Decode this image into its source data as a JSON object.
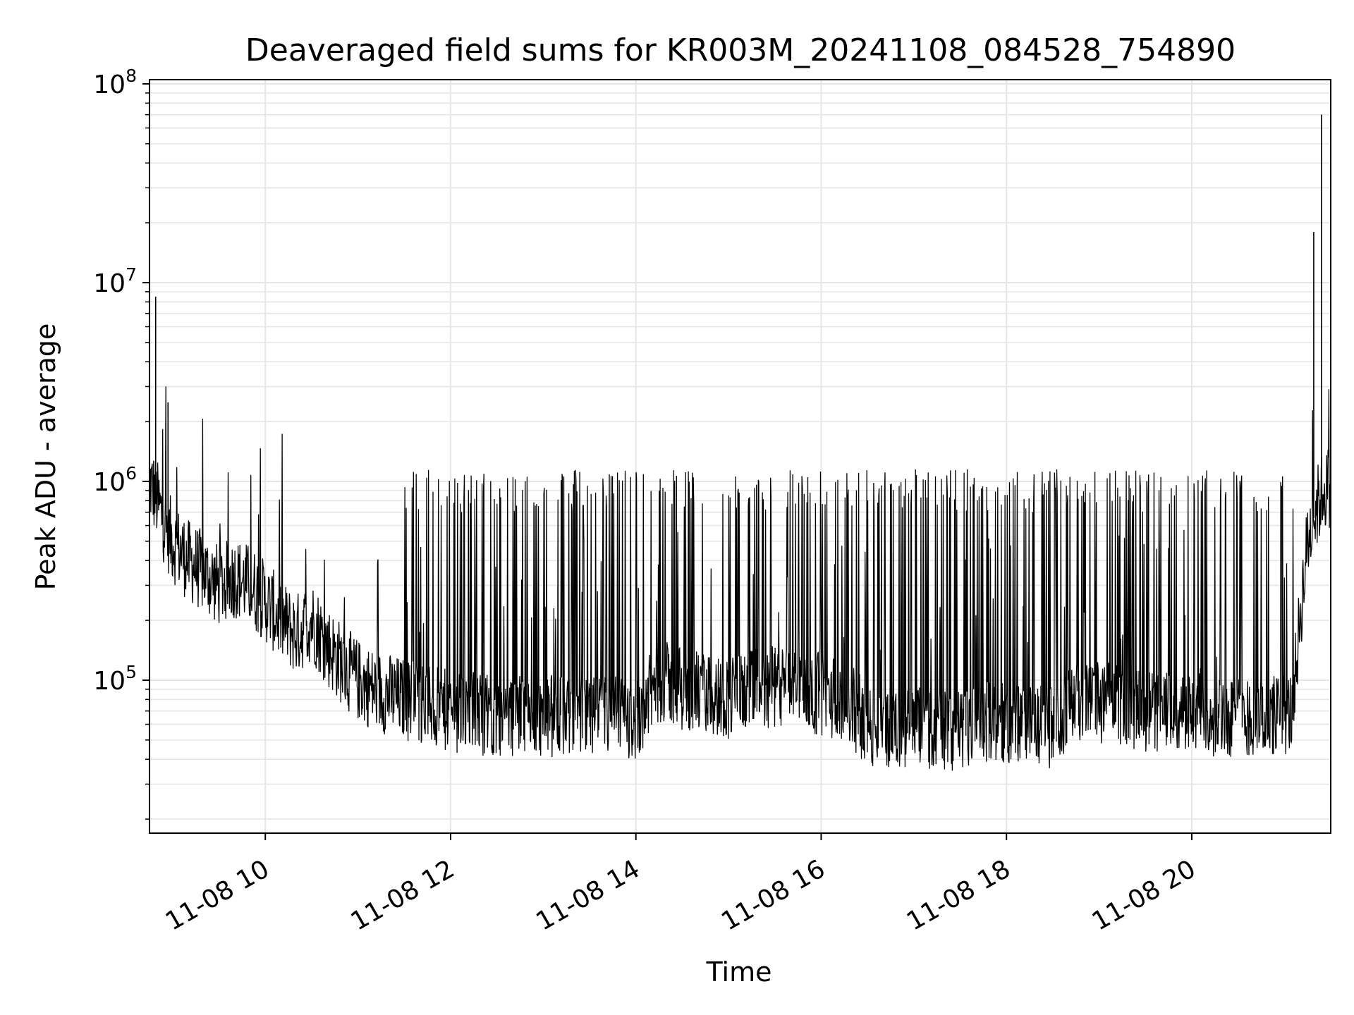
{
  "chart_data": {
    "type": "line",
    "title": "Deaveraged field sums for KR003M_20241108_084528_754890",
    "xlabel": "Time",
    "ylabel": "Peak ADU - average",
    "x_ticks": [
      "11-08 10",
      "11-08 12",
      "11-08 14",
      "11-08 16",
      "11-08 18",
      "11-08 20"
    ],
    "y_scale": "log",
    "y_ticks": [
      {
        "base": "10",
        "exp": "5"
      },
      {
        "base": "10",
        "exp": "6"
      },
      {
        "base": "10",
        "exp": "7"
      },
      {
        "base": "10",
        "exp": "8"
      }
    ],
    "xlim": [
      "2024-11-08 08:45",
      "2024-11-08 21:30"
    ],
    "ylim": [
      17000,
      105000000
    ],
    "grid": true,
    "line_color": "#000000",
    "series": [
      {
        "x": [
          "2024-11-08 08:45",
          "2024-11-08 08:50",
          "2024-11-08 08:55",
          "2024-11-08 09:00",
          "2024-11-08 09:10",
          "2024-11-08 09:20",
          "2024-11-08 09:30",
          "2024-11-08 09:40",
          "2024-11-08 09:50",
          "2024-11-08 10:00",
          "2024-11-08 10:10",
          "2024-11-08 10:20",
          "2024-11-08 10:30",
          "2024-11-08 10:40",
          "2024-11-08 10:50",
          "2024-11-08 11:00",
          "2024-11-08 11:10",
          "2024-11-08 11:20",
          "2024-11-08 11:30",
          "2024-11-08 11:40",
          "2024-11-08 11:50",
          "2024-11-08 12:00",
          "2024-11-08 12:15",
          "2024-11-08 12:30",
          "2024-11-08 12:45",
          "2024-11-08 13:00",
          "2024-11-08 13:15",
          "2024-11-08 13:30",
          "2024-11-08 13:45",
          "2024-11-08 14:00",
          "2024-11-08 14:15",
          "2024-11-08 14:30",
          "2024-11-08 14:45",
          "2024-11-08 15:00",
          "2024-11-08 15:15",
          "2024-11-08 15:30",
          "2024-11-08 15:45",
          "2024-11-08 16:00",
          "2024-11-08 16:15",
          "2024-11-08 16:30",
          "2024-11-08 16:45",
          "2024-11-08 17:00",
          "2024-11-08 17:15",
          "2024-11-08 17:30",
          "2024-11-08 17:45",
          "2024-11-08 18:00",
          "2024-11-08 18:15",
          "2024-11-08 18:30",
          "2024-11-08 18:45",
          "2024-11-08 19:00",
          "2024-11-08 19:15",
          "2024-11-08 19:30",
          "2024-11-08 19:45",
          "2024-11-08 20:00",
          "2024-11-08 20:15",
          "2024-11-08 20:30",
          "2024-11-08 20:45",
          "2024-11-08 21:00",
          "2024-11-08 21:05",
          "2024-11-08 21:10",
          "2024-11-08 21:15",
          "2024-11-08 21:20",
          "2024-11-08 21:25",
          "2024-11-08 21:30"
        ],
        "y": [
          1000000,
          800000,
          600000,
          500000,
          400000,
          350000,
          300000,
          330000,
          300000,
          250000,
          200000,
          170000,
          200000,
          150000,
          120000,
          100000,
          90000,
          85000,
          80000,
          78000,
          72000,
          70000,
          68000,
          67000,
          66000,
          66000,
          67000,
          65000,
          66000,
          64000,
          100000,
          90000,
          85000,
          82000,
          88000,
          92000,
          90000,
          85000,
          80000,
          60000,
          58000,
          57000,
          58000,
          56000,
          60000,
          62000,
          60000,
          58000,
          80000,
          78000,
          75000,
          70000,
          68000,
          68000,
          67000,
          66000,
          65000,
          66000,
          70000,
          200000,
          500000,
          700000,
          900000,
          950000
        ],
        "spikes": [
          {
            "x": "2024-11-08 08:49",
            "y": 8500000
          },
          {
            "x": "2024-11-08 08:57",
            "y": 2500000
          },
          {
            "x": "2024-11-08 21:19",
            "y": 18000000
          },
          {
            "x": "2024-11-08 21:24",
            "y": 70000000
          }
        ]
      }
    ]
  }
}
